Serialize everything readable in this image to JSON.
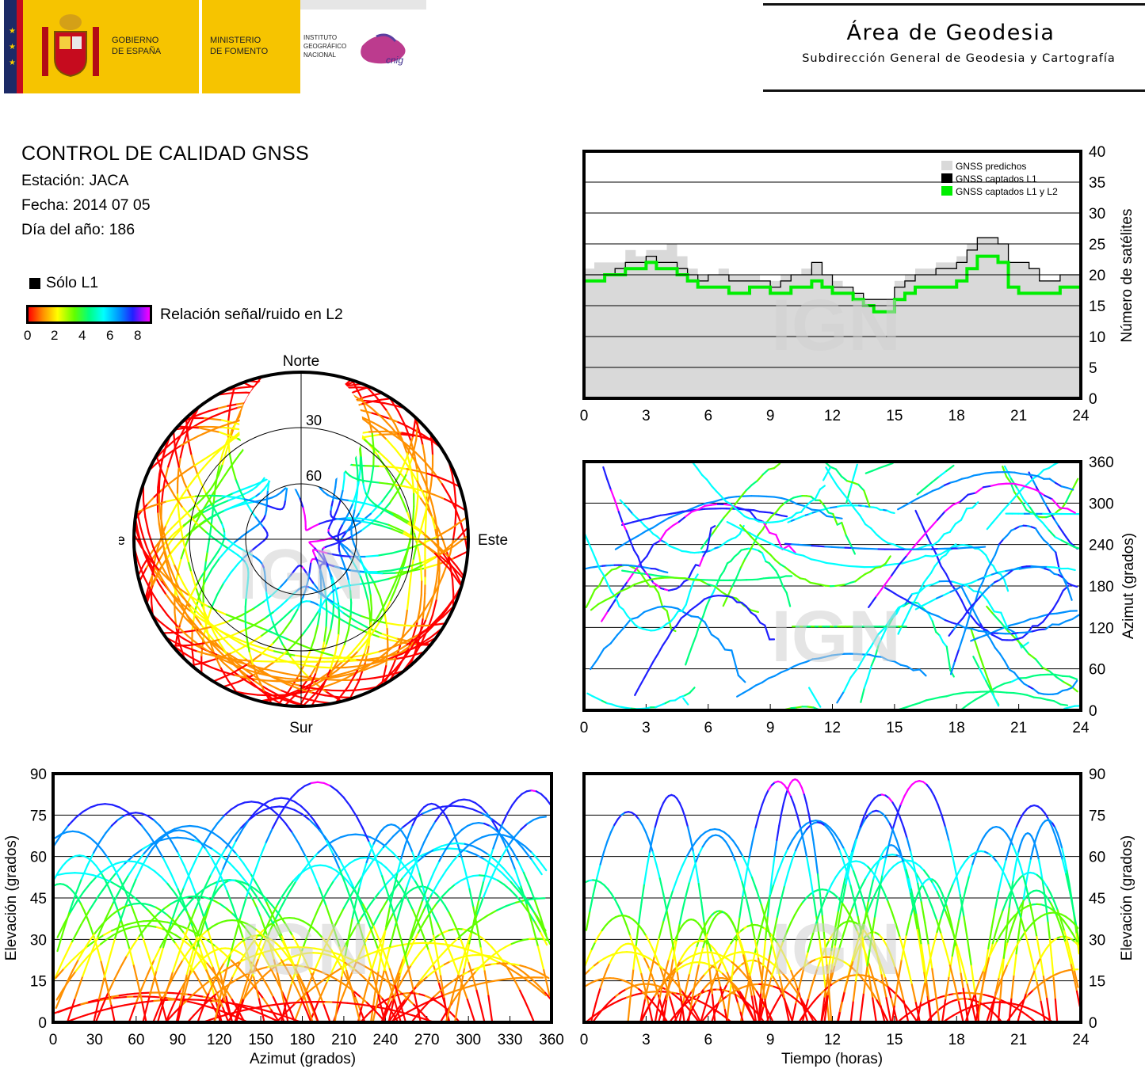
{
  "header": {
    "gov_line1": "GOBIERNO",
    "gov_line2": "DE ESPAÑA",
    "min_line1": "MINISTERIO",
    "min_line2": "DE FOMENTO",
    "ign_line1": "INSTITUTO",
    "ign_line2": "GEOGRÁFICO",
    "ign_line3": "NACIONAL",
    "cnig_logo": "cnig",
    "area_title": "Área de Geodesia",
    "area_subtitle": "Subdirección General de Geodesia y Cartografía"
  },
  "info": {
    "title": "CONTROL DE CALIDAD GNSS",
    "station": "Estación: JACA",
    "date": "Fecha: 2014 07 05",
    "doy": "Día del año: 186"
  },
  "legend": {
    "l1_only": "Sólo L1",
    "snr_label": "Relación señal/ruido en L2",
    "snr_ticks": [
      "0",
      "2",
      "4",
      "6",
      "8"
    ]
  },
  "watermark": "IGN",
  "colors": {
    "predicted": "#d9d9d9",
    "l1": "#000000",
    "l1l2": "#00ee00",
    "snr_scale": [
      "#ff0000",
      "#ff9000",
      "#ffff00",
      "#60ff00",
      "#00ff80",
      "#00ffff",
      "#0090ff",
      "#2020ff",
      "#ff00ff"
    ]
  },
  "chart_data": [
    {
      "type": "area",
      "id": "satellites",
      "ylabel": "Número de satélites",
      "xlim": [
        0,
        24
      ],
      "ylim": [
        0,
        40
      ],
      "x_ticks": [
        "0",
        "3",
        "6",
        "9",
        "12",
        "15",
        "18",
        "21",
        "24"
      ],
      "y_ticks": [
        "0",
        "5",
        "10",
        "15",
        "20",
        "25",
        "30",
        "35",
        "40"
      ],
      "grid": true,
      "legend_position": "top-right",
      "series": [
        {
          "name": "GNSS predichos",
          "x": [
            0,
            0.5,
            1,
            1.5,
            2,
            2.5,
            3,
            3.5,
            4,
            4.5,
            5,
            5.5,
            6,
            6.5,
            7,
            7.5,
            8,
            8.5,
            9,
            9.5,
            10,
            10.5,
            11,
            11.5,
            12,
            12.5,
            13,
            13.5,
            14,
            14.5,
            15,
            15.5,
            16,
            16.5,
            17,
            17.5,
            18,
            18.5,
            19,
            19.5,
            20,
            20.5,
            21,
            21.5,
            22,
            22.5,
            23,
            23.5,
            24
          ],
          "values": [
            21,
            22,
            22,
            22,
            24,
            23,
            24,
            24,
            25,
            23,
            21,
            20,
            20,
            21,
            20,
            20,
            20,
            19,
            19,
            20,
            20,
            21,
            22,
            20,
            19,
            18,
            17,
            16,
            16,
            16,
            19,
            20,
            21,
            21,
            22,
            22,
            23,
            25,
            26,
            26,
            25,
            22,
            22,
            21,
            19,
            19,
            20,
            20,
            20
          ]
        },
        {
          "name": "GNSS captados L1",
          "x": [
            0,
            0.5,
            1,
            1.5,
            2,
            2.5,
            3,
            3.5,
            4,
            4.5,
            5,
            5.5,
            6,
            6.5,
            7,
            7.5,
            8,
            8.5,
            9,
            9.5,
            10,
            10.5,
            11,
            11.5,
            12,
            12.5,
            13,
            13.5,
            14,
            14.5,
            15,
            15.5,
            16,
            16.5,
            17,
            17.5,
            18,
            18.5,
            19,
            19.5,
            20,
            20.5,
            21,
            21.5,
            22,
            22.5,
            23,
            23.5,
            24
          ],
          "values": [
            20,
            20,
            20,
            21,
            22,
            22,
            23,
            22,
            22,
            21,
            20,
            19,
            20,
            20,
            19,
            19,
            19,
            19,
            18,
            19,
            20,
            20,
            22,
            20,
            18,
            18,
            17,
            16,
            16,
            16,
            18,
            19,
            20,
            20,
            21,
            21,
            22,
            24,
            26,
            26,
            25,
            22,
            22,
            21,
            19,
            19,
            20,
            20,
            20
          ]
        },
        {
          "name": "GNSS captados L1 y L2",
          "x": [
            0,
            0.5,
            1,
            1.5,
            2,
            2.5,
            3,
            3.5,
            4,
            4.5,
            5,
            5.5,
            6,
            6.5,
            7,
            7.5,
            8,
            8.5,
            9,
            9.5,
            10,
            10.5,
            11,
            11.5,
            12,
            12.5,
            13,
            13.5,
            14,
            14.5,
            15,
            15.5,
            16,
            16.5,
            17,
            17.5,
            18,
            18.5,
            19,
            19.5,
            20,
            20.5,
            21,
            21.5,
            22,
            22.5,
            23,
            23.5,
            24
          ],
          "values": [
            19,
            19,
            20,
            20,
            21,
            21,
            22,
            21,
            21,
            20,
            19,
            18,
            18,
            18,
            17,
            17,
            18,
            18,
            17,
            17,
            18,
            18,
            19,
            18,
            17,
            17,
            16,
            15,
            14,
            14,
            16,
            17,
            18,
            18,
            18,
            18,
            19,
            21,
            23,
            23,
            22,
            18,
            17,
            17,
            17,
            17,
            18,
            18,
            18
          ]
        }
      ]
    },
    {
      "type": "scatter",
      "id": "skyplot",
      "labels": {
        "n": "Norte",
        "s": "Sur",
        "e": "Este",
        "w": "Oeste"
      },
      "rings": [
        "30",
        "60"
      ]
    },
    {
      "type": "scatter",
      "id": "azimuth_time",
      "ylabel": "Azimut (grados)",
      "xlim": [
        0,
        24
      ],
      "ylim": [
        0,
        360
      ],
      "x_ticks": [
        "0",
        "3",
        "6",
        "9",
        "12",
        "15",
        "18",
        "21",
        "24"
      ],
      "y_ticks": [
        "0",
        "60",
        "120",
        "180",
        "240",
        "300",
        "360"
      ],
      "grid": true
    },
    {
      "type": "scatter",
      "id": "elev_azimuth",
      "xlabel": "Azimut (grados)",
      "ylabel": "Elevación (grados)",
      "xlim": [
        0,
        360
      ],
      "ylim": [
        0,
        90
      ],
      "x_ticks": [
        "0",
        "30",
        "60",
        "90",
        "120",
        "150",
        "180",
        "210",
        "240",
        "270",
        "300",
        "330",
        "360"
      ],
      "y_ticks": [
        "0",
        "15",
        "30",
        "45",
        "60",
        "75",
        "90"
      ],
      "grid": true
    },
    {
      "type": "scatter",
      "id": "elev_time",
      "xlabel": "Tiempo (horas)",
      "ylabel": "Elevación (grados)",
      "xlim": [
        0,
        24
      ],
      "ylim": [
        0,
        90
      ],
      "x_ticks": [
        "0",
        "3",
        "6",
        "9",
        "12",
        "15",
        "18",
        "21",
        "24"
      ],
      "y_ticks": [
        "0",
        "15",
        "30",
        "45",
        "60",
        "75",
        "90"
      ],
      "grid": true
    }
  ]
}
